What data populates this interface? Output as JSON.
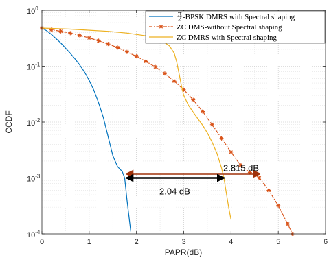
{
  "chart_data": {
    "type": "line",
    "title": "",
    "xlabel": "PAPR(dB)",
    "ylabel": "CCDF",
    "xlim": [
      0,
      6
    ],
    "ylim": [
      0.0001,
      1
    ],
    "y_scale": "log",
    "grid": "on (major and minor, dotted)",
    "legend_position": "top-right",
    "x_ticks": [
      "0",
      "1",
      "2",
      "3",
      "4",
      "5",
      "6"
    ],
    "y_ticks": [
      {
        "value": 1,
        "mantissa": "10",
        "exp": "0"
      },
      {
        "value": 0.1,
        "mantissa": "10",
        "exp": "-1"
      },
      {
        "value": 0.01,
        "mantissa": "10",
        "exp": "-2"
      },
      {
        "value": 0.001,
        "mantissa": "10",
        "exp": "-3"
      },
      {
        "value": 0.0001,
        "mantissa": "10",
        "exp": "-4"
      }
    ],
    "series": [
      {
        "name": "π/2-BPSK DMRS with Spectral shaping",
        "legend_frac_num": "π",
        "legend_frac_den": "2",
        "legend_rest": "-BPSK DMRS with Spectral shaping",
        "color": "#0072BD",
        "style": "solid",
        "x": [
          0.0,
          0.1,
          0.2,
          0.3,
          0.4,
          0.5,
          0.6,
          0.7,
          0.8,
          0.9,
          1.0,
          1.1,
          1.2,
          1.3,
          1.4,
          1.5,
          1.6,
          1.7,
          1.75,
          1.8,
          1.85,
          1.88
        ],
        "y": [
          0.48,
          0.43,
          0.37,
          0.31,
          0.26,
          0.21,
          0.17,
          0.135,
          0.105,
          0.079,
          0.056,
          0.037,
          0.022,
          0.012,
          0.0055,
          0.0025,
          0.0016,
          0.0013,
          0.001,
          0.0004,
          0.00018,
          0.00011
        ]
      },
      {
        "name": "ZC DMS-without Spectral shaping",
        "color": "#D95319",
        "style": "dashdot-star",
        "x": [
          0.0,
          0.2,
          0.4,
          0.6,
          0.8,
          1.0,
          1.2,
          1.4,
          1.6,
          1.8,
          2.0,
          2.2,
          2.4,
          2.6,
          2.8,
          3.0,
          3.2,
          3.4,
          3.6,
          3.8,
          4.0,
          4.2,
          4.4,
          4.6,
          4.8,
          5.0,
          5.2,
          5.3
        ],
        "y": [
          0.48,
          0.45,
          0.42,
          0.39,
          0.355,
          0.32,
          0.285,
          0.25,
          0.215,
          0.18,
          0.15,
          0.122,
          0.097,
          0.074,
          0.054,
          0.038,
          0.025,
          0.0155,
          0.009,
          0.0051,
          0.0029,
          0.0017,
          0.00125,
          0.001,
          0.0006,
          0.00032,
          0.00015,
          0.0001
        ]
      },
      {
        "name": "ZC DMRS with Spectral shaping",
        "color": "#EDB120",
        "style": "solid",
        "x": [
          0.0,
          0.3,
          0.6,
          1.0,
          1.4,
          1.8,
          2.2,
          2.5,
          2.7,
          2.8,
          2.85,
          2.9,
          2.95,
          3.0,
          3.1,
          3.2,
          3.3,
          3.4,
          3.5,
          3.6,
          3.7,
          3.8,
          3.85,
          3.9,
          3.95,
          4.0
        ],
        "y": [
          0.48,
          0.47,
          0.46,
          0.44,
          0.42,
          0.39,
          0.35,
          0.3,
          0.23,
          0.17,
          0.12,
          0.075,
          0.045,
          0.03,
          0.02,
          0.015,
          0.0115,
          0.0088,
          0.0064,
          0.0044,
          0.0028,
          0.0015,
          0.001,
          0.00055,
          0.0003,
          0.00018
        ]
      }
    ],
    "annotations": [
      {
        "text": "2.815  dB",
        "arrow_from_x": 1.78,
        "arrow_to_x": 4.62,
        "y": 0.001,
        "color": "#A0320A"
      },
      {
        "text": "2.04  dB",
        "arrow_from_x": 1.78,
        "arrow_to_x": 3.86,
        "y": 0.001,
        "color": "#000000"
      }
    ]
  }
}
